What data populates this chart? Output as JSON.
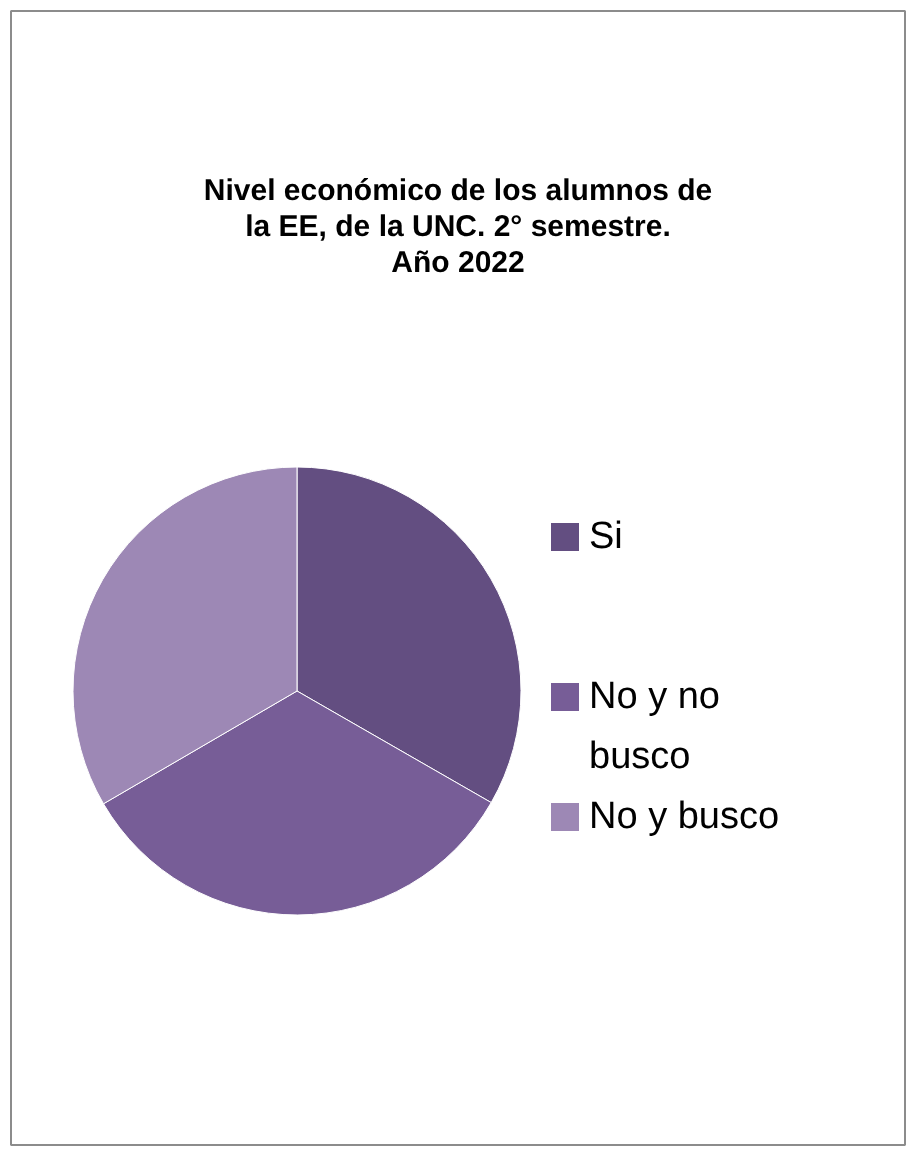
{
  "chart_data": {
    "type": "pie",
    "title": "Nivel económico de los alumnos de la EE, de la UNC. 2° semestre. Año 2022",
    "categories": [
      "Si",
      "No y no busco",
      "No y busco"
    ],
    "values": [
      33.3,
      33.3,
      33.4
    ],
    "colors": [
      "#634e81",
      "#775d97",
      "#9d88b5"
    ],
    "legend": "right"
  }
}
